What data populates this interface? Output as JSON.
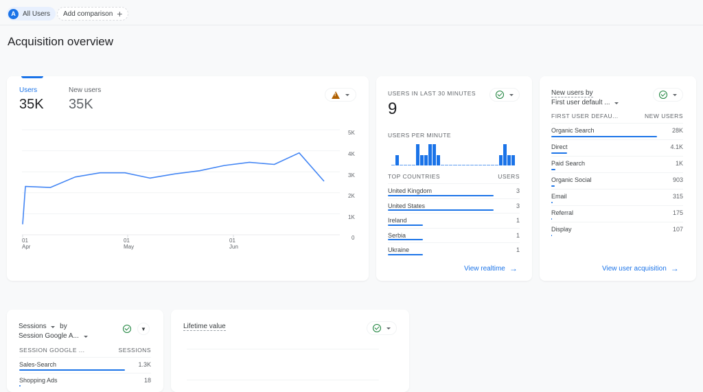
{
  "header": {
    "segment_avatar": "A",
    "segment_label": "All Users",
    "add_comparison_label": "Add comparison",
    "add_icon": "plus-icon",
    "page_title": "Acquisition overview"
  },
  "main_card": {
    "metrics": [
      {
        "label": "Users",
        "value": "35K",
        "active": true
      },
      {
        "label": "New users",
        "value": "35K",
        "active": false
      }
    ],
    "status_icon": "warning-icon",
    "y_ticks": [
      "5K",
      "4K",
      "3K",
      "2K",
      "1K",
      "0"
    ],
    "x_ticks": [
      {
        "day": "01",
        "month": "Apr"
      },
      {
        "day": "01",
        "month": "May"
      },
      {
        "day": "01",
        "month": "Jun"
      }
    ]
  },
  "chart_data": [
    {
      "type": "line",
      "title": "Users",
      "xlabel": "",
      "ylabel": "",
      "ylim": [
        0,
        5000
      ],
      "grid": true,
      "x_tick_labels": [
        "01 Apr",
        "01 May",
        "01 Jun"
      ],
      "series": [
        {
          "name": "Users",
          "color": "#4285f4",
          "x": [
            0,
            1,
            2,
            3,
            4,
            5,
            6,
            7,
            8,
            9,
            10,
            11,
            12,
            13
          ],
          "values": [
            500,
            2300,
            2250,
            2750,
            2950,
            2950,
            2700,
            2900,
            3050,
            3300,
            3450,
            3350,
            3900,
            2550
          ]
        }
      ]
    },
    {
      "type": "bar",
      "title": "Users per minute",
      "categories": [
        "1",
        "2",
        "3",
        "4",
        "5",
        "6",
        "7",
        "8",
        "9",
        "10",
        "11",
        "12",
        "13",
        "14",
        "15",
        "16",
        "17",
        "18",
        "19",
        "20",
        "21",
        "22",
        "23",
        "24",
        "25",
        "26",
        "27",
        "28",
        "29",
        "30"
      ],
      "values": [
        0,
        1,
        0,
        0,
        0,
        0,
        2,
        1,
        1,
        2,
        2,
        1,
        0,
        0,
        0,
        0,
        0,
        0,
        0,
        0,
        0,
        0,
        0,
        0,
        0,
        0,
        1,
        2,
        1,
        1
      ]
    },
    {
      "type": "table",
      "title": "Top countries",
      "columns": [
        "Top countries",
        "Users"
      ],
      "rows": [
        [
          "United Kingdom",
          3
        ],
        [
          "United States",
          3
        ],
        [
          "Ireland",
          1
        ],
        [
          "Serbia",
          1
        ],
        [
          "Ukraine",
          1
        ]
      ]
    },
    {
      "type": "table",
      "title": "New users by First user default channel group",
      "columns": [
        "First user default channel group",
        "New users"
      ],
      "rows": [
        [
          "Organic Search",
          "28K"
        ],
        [
          "Direct",
          "4.1K"
        ],
        [
          "Paid Search",
          "1K"
        ],
        [
          "Organic Social",
          "903"
        ],
        [
          "Email",
          "315"
        ],
        [
          "Referral",
          "175"
        ],
        [
          "Display",
          "107"
        ]
      ]
    }
  ],
  "realtime_card": {
    "title": "Users in last 30 minutes",
    "value": "9",
    "subtitle": "Users per minute",
    "status_icon": "check-circle-icon",
    "table_header": {
      "left": "Top countries",
      "right": "Users"
    },
    "rows": [
      {
        "label": "United Kingdom",
        "value": "3",
        "pct": 100
      },
      {
        "label": "United States",
        "value": "3",
        "pct": 100
      },
      {
        "label": "Ireland",
        "value": "1",
        "pct": 33
      },
      {
        "label": "Serbia",
        "value": "1",
        "pct": 33
      },
      {
        "label": "Ukraine",
        "value": "1",
        "pct": 33
      }
    ],
    "link_label": "View realtime"
  },
  "new_users_card": {
    "title_line1": "New users by",
    "title_line2": "First user default ...",
    "status_icon": "check-circle-icon",
    "table_header": {
      "left": "First user defau...",
      "right": "New users"
    },
    "rows": [
      {
        "label": "Organic Search",
        "value": "28K",
        "pct": 100
      },
      {
        "label": "Direct",
        "value": "4.1K",
        "pct": 15
      },
      {
        "label": "Paid Search",
        "value": "1K",
        "pct": 4
      },
      {
        "label": "Organic Social",
        "value": "903",
        "pct": 3
      },
      {
        "label": "Email",
        "value": "315",
        "pct": 1.2
      },
      {
        "label": "Referral",
        "value": "175",
        "pct": 0.7
      },
      {
        "label": "Display",
        "value": "107",
        "pct": 0.4
      }
    ],
    "link_label": "View user acquisition"
  },
  "sessions_card": {
    "title_line1": "Sessions",
    "title_by": "by",
    "title_line2": "Session Google A...",
    "status_icon": "check-circle-icon",
    "filter_icon": "filter-icon",
    "table_header": {
      "left": "Session Google ...",
      "right": "Sessions"
    },
    "rows": [
      {
        "label": "Sales-Search",
        "value": "1.3K",
        "pct": 100
      },
      {
        "label": "Shopping Ads",
        "value": "18",
        "pct": 1.4
      }
    ]
  },
  "ltv_card": {
    "title": "Lifetime value",
    "status_icon": "check-circle-icon"
  }
}
